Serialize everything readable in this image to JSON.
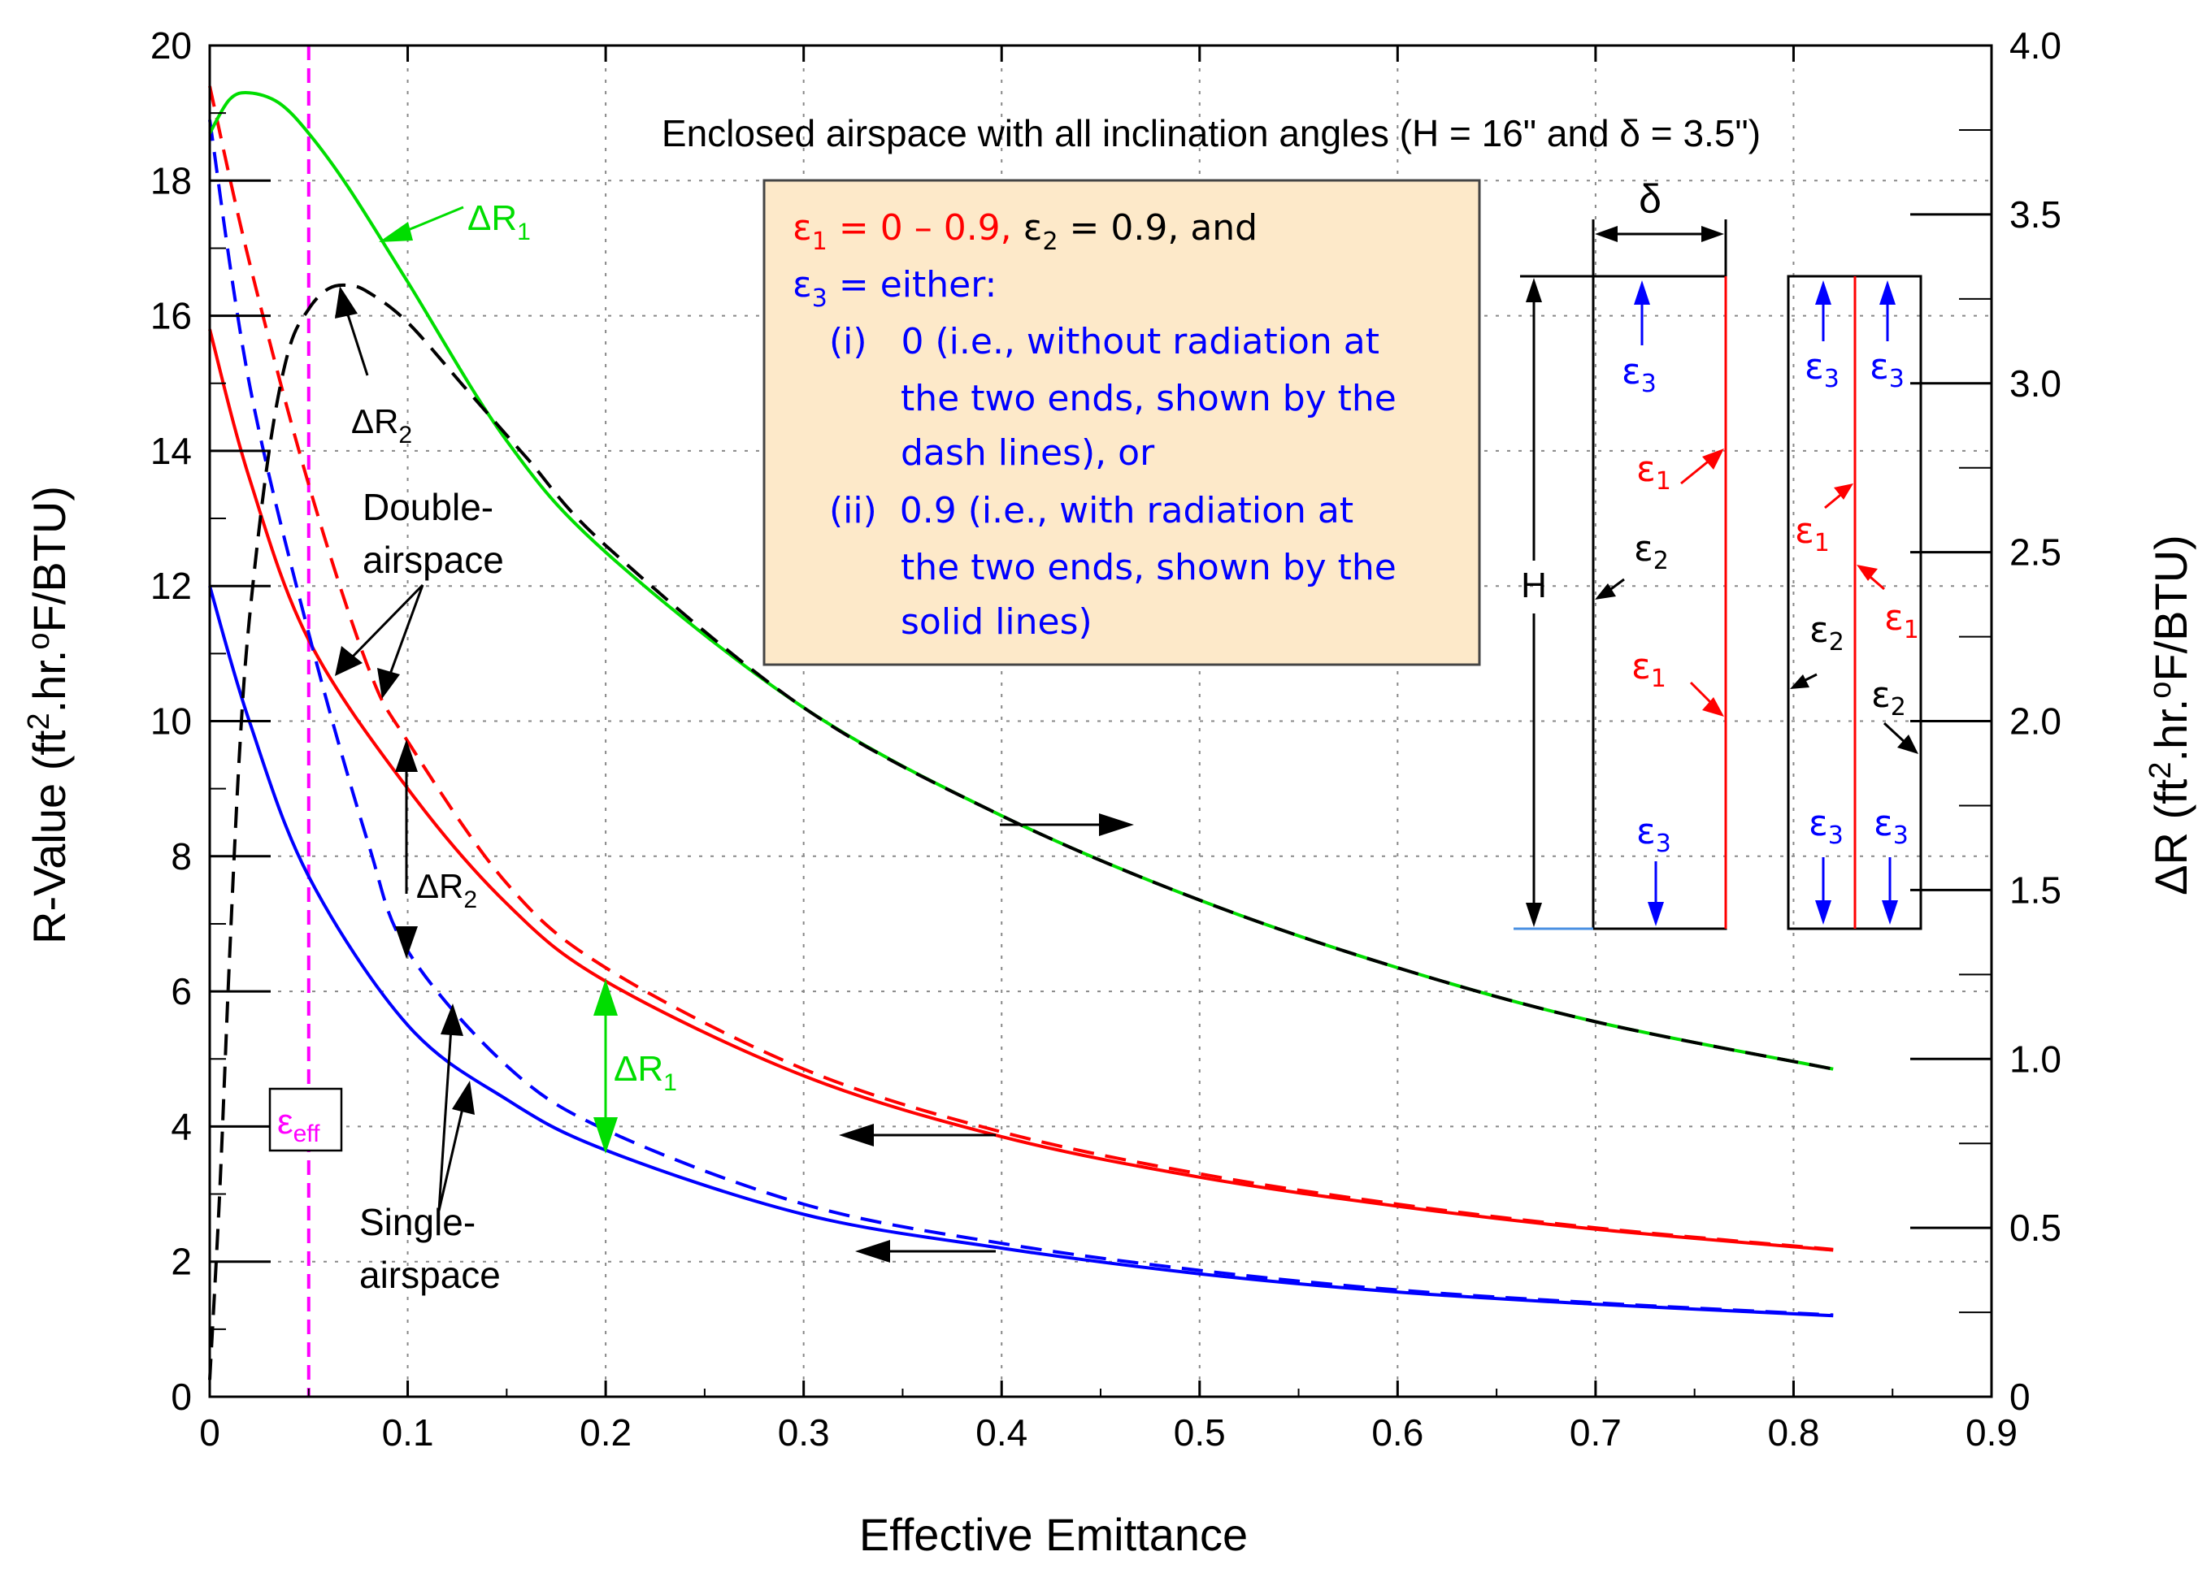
{
  "chart_data": {
    "type": "line",
    "title": "Enclosed airspace with all inclination angles (H = 16\" and δ = 3.5\")",
    "xlabel": "Effective Emittance",
    "ylabel_main": "R-Value (ft",
    "ylabel_sup": "2",
    "ylabel_mid": ".hr.",
    "ylabel_sup2": "o",
    "ylabel_end": "F/BTU)",
    "y2label_main": "ΔR (ft",
    "y2label_sup": "2",
    "y2label_mid": ".hr.",
    "y2label_sup2": "o",
    "y2label_end": "F/BTU)",
    "xlim": [
      0,
      0.9
    ],
    "ylim": [
      0,
      20
    ],
    "y2lim": [
      0,
      4.0
    ],
    "x_ticks": [
      "0",
      "0.1",
      "0.2",
      "0.3",
      "0.4",
      "0.5",
      "0.6",
      "0.7",
      "0.8",
      "0.9"
    ],
    "x_tick_values": [
      0,
      0.1,
      0.2,
      0.3,
      0.4,
      0.5,
      0.6,
      0.7,
      0.8,
      0.9
    ],
    "y_ticks": [
      "0",
      "2",
      "4",
      "6",
      "8",
      "10",
      "12",
      "14",
      "16",
      "18",
      "20"
    ],
    "y_tick_values": [
      0,
      2,
      4,
      6,
      8,
      10,
      12,
      14,
      16,
      18,
      20
    ],
    "y2_ticks": [
      "0",
      "0.5",
      "1.0",
      "1.5",
      "2.0",
      "2.5",
      "3.0",
      "3.5",
      "4.0"
    ],
    "y2_tick_values": [
      0,
      0.5,
      1.0,
      1.5,
      2.0,
      2.5,
      3.0,
      3.5,
      4.0
    ],
    "grid": true,
    "eps_eff_x": 0.05,
    "series": [
      {
        "name": "Double-airspace, ε3 = 0.9 (solid)",
        "axis": "left",
        "color": "#ff0000",
        "dash": false,
        "x": [
          0,
          0.02,
          0.05,
          0.1,
          0.15,
          0.2,
          0.3,
          0.4,
          0.5,
          0.6,
          0.7,
          0.82
        ],
        "y": [
          15.8,
          13.6,
          11.2,
          9.0,
          7.3,
          6.15,
          4.75,
          3.85,
          3.25,
          2.82,
          2.48,
          2.17
        ]
      },
      {
        "name": "Double-airspace, ε3 = 0 (dashed)",
        "axis": "left",
        "color": "#ff0000",
        "dash": true,
        "x": [
          0,
          0.02,
          0.05,
          0.08,
          0.1,
          0.15,
          0.2,
          0.3,
          0.4,
          0.5,
          0.6,
          0.7,
          0.82
        ],
        "y": [
          19.4,
          16.8,
          13.5,
          10.8,
          9.7,
          7.6,
          6.35,
          4.85,
          3.92,
          3.3,
          2.85,
          2.5,
          2.18
        ]
      },
      {
        "name": "Single-airspace, ε3 = 0.9 (solid)",
        "axis": "left",
        "color": "#0000ff",
        "dash": false,
        "x": [
          0,
          0.02,
          0.05,
          0.1,
          0.15,
          0.2,
          0.3,
          0.4,
          0.5,
          0.6,
          0.7,
          0.82
        ],
        "y": [
          12.0,
          10.0,
          7.7,
          5.5,
          4.4,
          3.65,
          2.7,
          2.2,
          1.82,
          1.55,
          1.37,
          1.2
        ]
      },
      {
        "name": "Single-airspace, ε3 = 0 (dashed)",
        "axis": "left",
        "color": "#0000ff",
        "dash": true,
        "x": [
          0,
          0.02,
          0.05,
          0.08,
          0.1,
          0.15,
          0.2,
          0.3,
          0.4,
          0.5,
          0.6,
          0.7,
          0.82
        ],
        "y": [
          18.9,
          15.0,
          11.3,
          8.2,
          6.6,
          4.9,
          3.95,
          2.85,
          2.27,
          1.87,
          1.58,
          1.39,
          1.21
        ]
      },
      {
        "name": "ΔR1 (green solid)",
        "axis": "right",
        "color": "#00dd00",
        "dash": false,
        "x": [
          0,
          0.01,
          0.02,
          0.035,
          0.05,
          0.07,
          0.1,
          0.15,
          0.2,
          0.3,
          0.4,
          0.5,
          0.6,
          0.7,
          0.82
        ],
        "y": [
          3.74,
          3.84,
          3.86,
          3.83,
          3.74,
          3.58,
          3.3,
          2.83,
          2.5,
          2.04,
          1.72,
          1.47,
          1.27,
          1.11,
          0.97
        ]
      },
      {
        "name": "ΔR2 (black dashed)",
        "axis": "right",
        "color": "#000000",
        "dash": true,
        "x": [
          0,
          0.005,
          0.01,
          0.015,
          0.02,
          0.03,
          0.04,
          0.05,
          0.06,
          0.07,
          0.08,
          0.1,
          0.13,
          0.16,
          0.2,
          0.3,
          0.4,
          0.5,
          0.6,
          0.7,
          0.82
        ],
        "y": [
          0.05,
          0.6,
          1.3,
          1.9,
          2.3,
          2.8,
          3.1,
          3.22,
          3.28,
          3.29,
          3.27,
          3.18,
          2.98,
          2.78,
          2.52,
          2.04,
          1.72,
          1.47,
          1.27,
          1.11,
          0.97
        ]
      }
    ],
    "annotations": {
      "dR1_top": "ΔR",
      "dR1_top_sub": "1",
      "dR2_top": "ΔR",
      "dR2_top_sub": "2",
      "double_l1": "Double-",
      "double_l2": "airspace",
      "dR2_mid": "ΔR",
      "dR2_mid_sub": "2",
      "dR1_mid": "ΔR",
      "dR1_mid_sub": "1",
      "single_l1": "Single-",
      "single_l2": "airspace",
      "eps_eff": "ε",
      "eps_eff_sub": "eff"
    },
    "legend_box": {
      "l1_eps1": "ε",
      "l1_eps1_sub": "1",
      "l1_eps1_val": " = 0 – 0.9,",
      "l1_eps2": " ε",
      "l1_eps2_sub": "2",
      "l1_eps2_val": " = 0.9, and",
      "l2_eps3": "ε",
      "l2_eps3_sub": "3",
      "l2_rest": " = either:",
      "l3": "(i)   0 (i.e., without radiation at",
      "l4": "the two ends, shown by the",
      "l5": "dash lines), or",
      "l6": "(ii)  0.9 (i.e., with radiation at",
      "l7": "the two ends, shown by the",
      "l8": "solid lines)"
    },
    "schematic": {
      "delta": "δ",
      "H": "H",
      "eps": "ε",
      "sub1": "1",
      "sub2": "2",
      "sub3": "3"
    },
    "colors": {
      "red": "#ff0000",
      "blue": "#0000ff",
      "green": "#00dd00",
      "magenta": "#ff00ff",
      "legend_bg": "#fde9c9",
      "legend_border": "#444444",
      "grid": "#888888"
    }
  }
}
